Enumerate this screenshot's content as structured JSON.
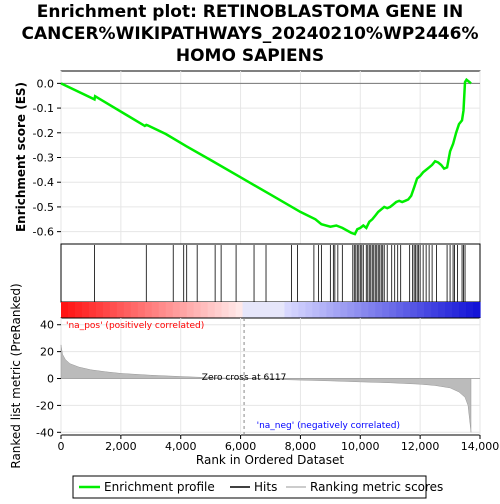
{
  "chart_data": {
    "type": "line",
    "title_lines": [
      "Enrichment plot: RETINOBLASTOMA GENE IN",
      "CANCER%WIKIPATHWAYS_20240210%WP2446%",
      "HOMO SAPIENS"
    ],
    "es_panel": {
      "ylabel": "Enrichment score (ES)",
      "ylim": [
        -0.65,
        0.05
      ],
      "yticks": [
        "0.0",
        "-0.1",
        "-0.2",
        "-0.3",
        "-0.4",
        "-0.5",
        "-0.6"
      ],
      "ytick_values": [
        0.0,
        -0.1,
        -0.2,
        -0.3,
        -0.4,
        -0.5,
        -0.6
      ],
      "line_color": "#00ee00",
      "series": [
        {
          "name": "Enrichment profile",
          "x": [
            0,
            1120,
            1140,
            2800,
            2850,
            2900,
            3500,
            4200,
            5000,
            6000,
            7000,
            8000,
            8500,
            8700,
            9000,
            9200,
            9400,
            9700,
            9820,
            9900,
            10000,
            10100,
            10200,
            10300,
            10400,
            10500,
            10600,
            10700,
            10800,
            10900,
            11000,
            11100,
            11200,
            11300,
            11400,
            11500,
            11600,
            11700,
            11800,
            11900,
            12000,
            12100,
            12200,
            12300,
            12400,
            12500,
            12600,
            12700,
            12800,
            12900,
            13000,
            13100,
            13200,
            13300,
            13400,
            13450,
            13500,
            13550,
            13650,
            13700
          ],
          "y": [
            0.0,
            -0.065,
            -0.052,
            -0.172,
            -0.168,
            -0.17,
            -0.205,
            -0.255,
            -0.31,
            -0.38,
            -0.45,
            -0.52,
            -0.55,
            -0.57,
            -0.58,
            -0.575,
            -0.585,
            -0.605,
            -0.61,
            -0.59,
            -0.585,
            -0.575,
            -0.585,
            -0.56,
            -0.55,
            -0.535,
            -0.52,
            -0.51,
            -0.5,
            -0.505,
            -0.5,
            -0.49,
            -0.48,
            -0.475,
            -0.48,
            -0.475,
            -0.47,
            -0.455,
            -0.42,
            -0.385,
            -0.375,
            -0.36,
            -0.35,
            -0.34,
            -0.33,
            -0.315,
            -0.32,
            -0.33,
            -0.345,
            -0.34,
            -0.275,
            -0.245,
            -0.2,
            -0.165,
            -0.15,
            -0.11,
            0.005,
            0.015,
            0.005,
            0.0
          ]
        }
      ]
    },
    "hits_panel": {
      "hit_positions": [
        1120,
        2850,
        3750,
        4100,
        4200,
        4550,
        5150,
        5350,
        5850,
        6450,
        6850,
        7700,
        7900,
        8450,
        8600,
        8700,
        9000,
        9100,
        9150,
        9250,
        9400,
        9750,
        9800,
        9850,
        9900,
        9950,
        10000,
        10050,
        10100,
        10200,
        10250,
        10300,
        10350,
        10400,
        10450,
        10500,
        10550,
        10600,
        10650,
        10700,
        10750,
        10800,
        10900,
        11050,
        11150,
        11250,
        11350,
        11650,
        11750,
        11800,
        11850,
        11900,
        11950,
        12000,
        12100,
        12200,
        12300,
        12400,
        12550,
        12900,
        13000,
        13100,
        13150,
        13250,
        13400,
        13450,
        13500
      ]
    },
    "ranked_panel": {
      "ylabel": "Ranked list metric (PreRanked)",
      "ylim": [
        -42,
        45
      ],
      "yticks": [
        "40",
        "20",
        "0",
        "-20",
        "-40"
      ],
      "ytick_values": [
        40,
        20,
        0,
        -20,
        -40
      ],
      "zero_cross": 6117,
      "zero_cross_label": "Zero cross at 6117",
      "pos_label": "'na_pos' (positively correlated)",
      "neg_label": "'na_neg' (negatively correlated)",
      "metric_x": [
        0,
        50,
        150,
        300,
        600,
        1000,
        1500,
        2000,
        3000,
        4000,
        5000,
        6117,
        7000,
        8000,
        9000,
        10000,
        11000,
        12000,
        12500,
        13000,
        13300,
        13500,
        13600,
        13700
      ],
      "metric_y": [
        25,
        18,
        14,
        11,
        8.5,
        6.5,
        5,
        3.8,
        2.5,
        1.5,
        0.6,
        0,
        -0.6,
        -1.2,
        -1.8,
        -2.5,
        -3.2,
        -4.2,
        -5.2,
        -7,
        -10,
        -14,
        -20,
        -40
      ]
    },
    "x_axis": {
      "xlabel": "Rank in Ordered Dataset",
      "xlim": [
        0,
        14000
      ],
      "xticks": [
        "0",
        "2,000",
        "4,000",
        "6,000",
        "8,000",
        "10,000",
        "12,000",
        "14,000"
      ],
      "xtick_values": [
        0,
        2000,
        4000,
        6000,
        8000,
        10000,
        12000,
        14000
      ]
    },
    "legend": {
      "placement": "bottom",
      "entries": [
        {
          "label": "Enrichment profile",
          "color": "#00ee00"
        },
        {
          "label": "Hits",
          "color": "#000000"
        },
        {
          "label": "Ranking metric scores",
          "color": "#bbbbbb"
        }
      ]
    },
    "colors": {
      "pos_label": "#ff0000",
      "neg_label": "#0000ff",
      "metric_fill": "#bbbbbb",
      "zero_line": "#888888"
    }
  }
}
